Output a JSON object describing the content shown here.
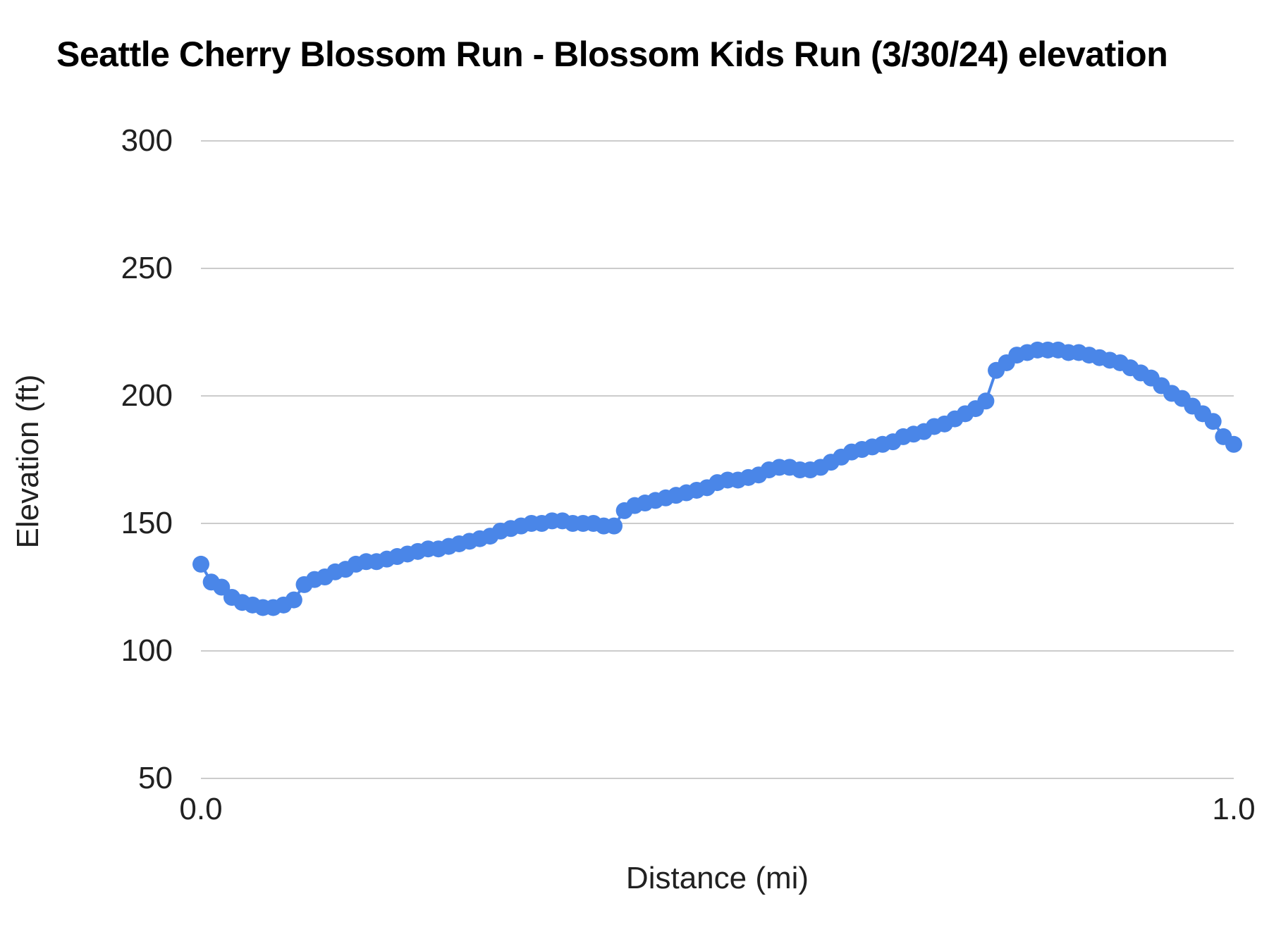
{
  "chart_data": {
    "type": "line",
    "title": "Seattle Cherry Blossom Run - Blossom Kids Run (3/30/24) elevation",
    "xlabel": "Distance (mi)",
    "ylabel": "Elevation (ft)",
    "xlim": [
      0.0,
      1.0
    ],
    "ylim": [
      50,
      300
    ],
    "y_ticks": [
      300,
      250,
      200,
      150,
      100,
      50
    ],
    "x_ticks": [
      0.0,
      1.0
    ],
    "x_tick_labels": [
      "0.0",
      "1.0"
    ],
    "grid": true,
    "legend_position": "none",
    "marker": "circle",
    "series": [
      {
        "name": "elevation",
        "color": "#4a86e8",
        "points": [
          [
            0.0,
            134
          ],
          [
            0.01,
            127
          ],
          [
            0.02,
            125
          ],
          [
            0.03,
            121
          ],
          [
            0.04,
            119
          ],
          [
            0.05,
            118
          ],
          [
            0.06,
            117
          ],
          [
            0.07,
            117
          ],
          [
            0.08,
            118
          ],
          [
            0.09,
            120
          ],
          [
            0.1,
            126
          ],
          [
            0.11,
            128
          ],
          [
            0.12,
            129
          ],
          [
            0.13,
            131
          ],
          [
            0.14,
            132
          ],
          [
            0.15,
            134
          ],
          [
            0.16,
            135
          ],
          [
            0.17,
            135
          ],
          [
            0.18,
            136
          ],
          [
            0.19,
            137
          ],
          [
            0.2,
            138
          ],
          [
            0.21,
            139
          ],
          [
            0.22,
            140
          ],
          [
            0.23,
            140
          ],
          [
            0.24,
            141
          ],
          [
            0.25,
            142
          ],
          [
            0.26,
            143
          ],
          [
            0.27,
            144
          ],
          [
            0.28,
            145
          ],
          [
            0.29,
            147
          ],
          [
            0.3,
            148
          ],
          [
            0.31,
            149
          ],
          [
            0.32,
            150
          ],
          [
            0.33,
            150
          ],
          [
            0.34,
            151
          ],
          [
            0.35,
            151
          ],
          [
            0.36,
            150
          ],
          [
            0.37,
            150
          ],
          [
            0.38,
            150
          ],
          [
            0.39,
            149
          ],
          [
            0.4,
            149
          ],
          [
            0.41,
            155
          ],
          [
            0.42,
            157
          ],
          [
            0.43,
            158
          ],
          [
            0.44,
            159
          ],
          [
            0.45,
            160
          ],
          [
            0.46,
            161
          ],
          [
            0.47,
            162
          ],
          [
            0.48,
            163
          ],
          [
            0.49,
            164
          ],
          [
            0.5,
            166
          ],
          [
            0.51,
            167
          ],
          [
            0.52,
            167
          ],
          [
            0.53,
            168
          ],
          [
            0.54,
            169
          ],
          [
            0.55,
            171
          ],
          [
            0.56,
            172
          ],
          [
            0.57,
            172
          ],
          [
            0.58,
            171
          ],
          [
            0.59,
            171
          ],
          [
            0.6,
            172
          ],
          [
            0.61,
            174
          ],
          [
            0.62,
            176
          ],
          [
            0.63,
            178
          ],
          [
            0.64,
            179
          ],
          [
            0.65,
            180
          ],
          [
            0.66,
            181
          ],
          [
            0.67,
            182
          ],
          [
            0.68,
            184
          ],
          [
            0.69,
            185
          ],
          [
            0.7,
            186
          ],
          [
            0.71,
            188
          ],
          [
            0.72,
            189
          ],
          [
            0.73,
            191
          ],
          [
            0.74,
            193
          ],
          [
            0.75,
            195
          ],
          [
            0.76,
            198
          ],
          [
            0.77,
            210
          ],
          [
            0.78,
            213
          ],
          [
            0.79,
            216
          ],
          [
            0.8,
            217
          ],
          [
            0.81,
            218
          ],
          [
            0.82,
            218
          ],
          [
            0.83,
            218
          ],
          [
            0.84,
            217
          ],
          [
            0.85,
            217
          ],
          [
            0.86,
            216
          ],
          [
            0.87,
            215
          ],
          [
            0.88,
            214
          ],
          [
            0.89,
            213
          ],
          [
            0.9,
            211
          ],
          [
            0.91,
            209
          ],
          [
            0.92,
            207
          ],
          [
            0.93,
            204
          ],
          [
            0.94,
            201
          ],
          [
            0.95,
            199
          ],
          [
            0.96,
            196
          ],
          [
            0.97,
            193
          ],
          [
            0.98,
            190
          ],
          [
            0.99,
            184
          ],
          [
            1.0,
            181
          ]
        ]
      }
    ]
  },
  "colors": {
    "series_blue": "#4a86e8",
    "gridline": "#cccccc",
    "text": "#212121",
    "title_text": "#000000",
    "background": "#ffffff"
  }
}
